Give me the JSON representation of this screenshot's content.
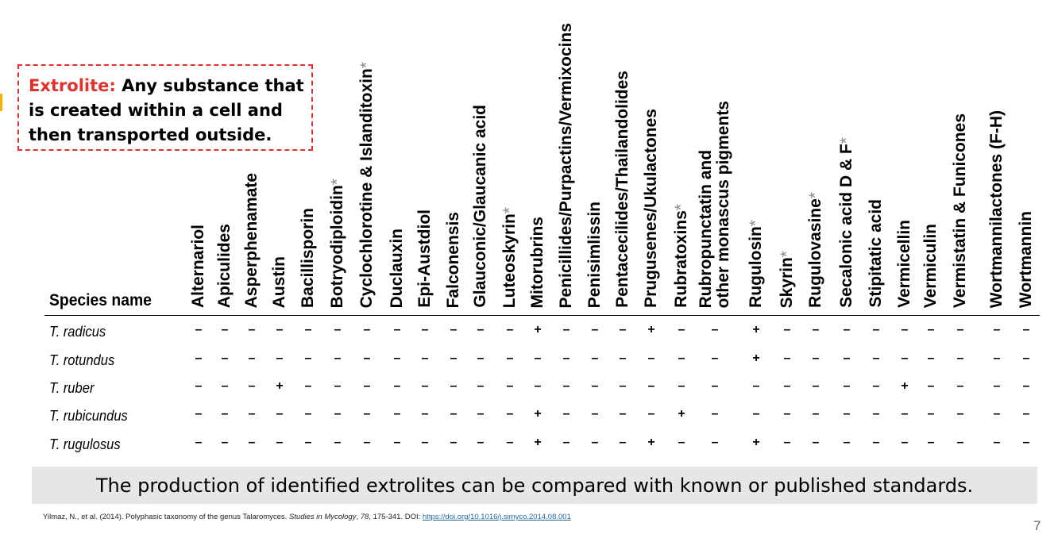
{
  "callout": {
    "term": "Extrolite:",
    "definition": " Any substance that is created within a cell and then transported outside."
  },
  "table": {
    "species_header": "Species name",
    "columns": [
      {
        "label": "Alternariol",
        "asterisk": ""
      },
      {
        "label": "Apiculides",
        "asterisk": ""
      },
      {
        "label": "Asperphenamate",
        "asterisk": ""
      },
      {
        "label": "Austin",
        "asterisk": ""
      },
      {
        "label": "Bacillisporin",
        "asterisk": ""
      },
      {
        "label": "Botryodiploidin",
        "asterisk": "*"
      },
      {
        "label": "Cyclochlorotine & Islanditoxin",
        "asterisk": "*"
      },
      {
        "label": "Duclauxin",
        "asterisk": ""
      },
      {
        "label": "Epi-Austdiol",
        "asterisk": ""
      },
      {
        "label": "Falconensis",
        "asterisk": ""
      },
      {
        "label": "Glauconic/Glaucanic acid",
        "asterisk": ""
      },
      {
        "label": "Luteoskyrin",
        "asterisk": "*"
      },
      {
        "label": "Mitorubrins",
        "asterisk": ""
      },
      {
        "label": "Penicillides/Purpactins/Vermixocins",
        "asterisk": ""
      },
      {
        "label": "Penisimlissin",
        "asterisk": ""
      },
      {
        "label": "Pentacecilides/Thailandolides",
        "asterisk": ""
      },
      {
        "label": "Prugusenes/Ukulactones",
        "asterisk": ""
      },
      {
        "label": "Rubratoxins",
        "asterisk": "*"
      },
      {
        "label": "Rubropunctatin and\nother monascus pigments",
        "asterisk": ""
      },
      {
        "label": "Rugulosin",
        "asterisk": "*"
      },
      {
        "label": "Skyrin",
        "asterisk": "*"
      },
      {
        "label": "Rugulovasine",
        "asterisk": "*"
      },
      {
        "label": "Secalonic acid D & F",
        "asterisk": "*"
      },
      {
        "label": "Stipitatic acid",
        "asterisk": ""
      },
      {
        "label": "Vermicellin",
        "asterisk": ""
      },
      {
        "label": "Vermiculin",
        "asterisk": ""
      },
      {
        "label": "Vermistatin & Funicones",
        "asterisk": ""
      },
      {
        "label": "Wortmannilactones (F-H)",
        "asterisk": ""
      },
      {
        "label": "Wortmannin",
        "asterisk": ""
      }
    ],
    "rows": [
      {
        "species": "T. radicus",
        "values": [
          "–",
          "–",
          "–",
          "–",
          "–",
          "–",
          "–",
          "–",
          "–",
          "–",
          "–",
          "–",
          "+",
          "–",
          "–",
          "–",
          "+",
          "–",
          "–",
          "+",
          "–",
          "–",
          "–",
          "–",
          "–",
          "–",
          "–",
          "–",
          "–"
        ]
      },
      {
        "species": "T. rotundus",
        "values": [
          "–",
          "–",
          "–",
          "–",
          "–",
          "–",
          "–",
          "–",
          "–",
          "–",
          "–",
          "–",
          "–",
          "–",
          "–",
          "–",
          "–",
          "–",
          "–",
          "+",
          "–",
          "–",
          "–",
          "–",
          "–",
          "–",
          "–",
          "–",
          "–"
        ]
      },
      {
        "species": "T. ruber",
        "values": [
          "–",
          "–",
          "–",
          "+",
          "–",
          "–",
          "–",
          "–",
          "–",
          "–",
          "–",
          "–",
          "–",
          "–",
          "–",
          "–",
          "–",
          "–",
          "–",
          "–",
          "–",
          "–",
          "–",
          "–",
          "+",
          "–",
          "–",
          "–",
          "–"
        ]
      },
      {
        "species": "T. rubicundus",
        "values": [
          "–",
          "–",
          "–",
          "–",
          "–",
          "–",
          "–",
          "–",
          "–",
          "–",
          "–",
          "–",
          "+",
          "–",
          "–",
          "–",
          "–",
          "+",
          "–",
          "–",
          "–",
          "–",
          "–",
          "–",
          "–",
          "–",
          "–",
          "–",
          "–"
        ]
      },
      {
        "species": "T. rugulosus",
        "values": [
          "–",
          "–",
          "–",
          "–",
          "–",
          "–",
          "–",
          "–",
          "–",
          "–",
          "–",
          "–",
          "+",
          "–",
          "–",
          "–",
          "+",
          "–",
          "–",
          "+",
          "–",
          "–",
          "–",
          "–",
          "–",
          "–",
          "–",
          "–",
          "–"
        ]
      }
    ]
  },
  "caption": "The production of identified extrolites can be compared with known or published standards.",
  "citation": {
    "text": "Yilmaz, N., et al. (2014). Polyphasic taxonomy of the genus Talaromyces. ",
    "journal": "Studies in Mycology",
    "sep": ", ",
    "volume": "78",
    "pages": ", 175-341. DOI: ",
    "doi": "https://doi.org/10.1016/j.simyco.2014.08.001"
  },
  "page_number": "7",
  "colors": {
    "accent_red": "#e0312b",
    "caption_bg": "#e6e6e6",
    "link": "#1f6aa5"
  }
}
